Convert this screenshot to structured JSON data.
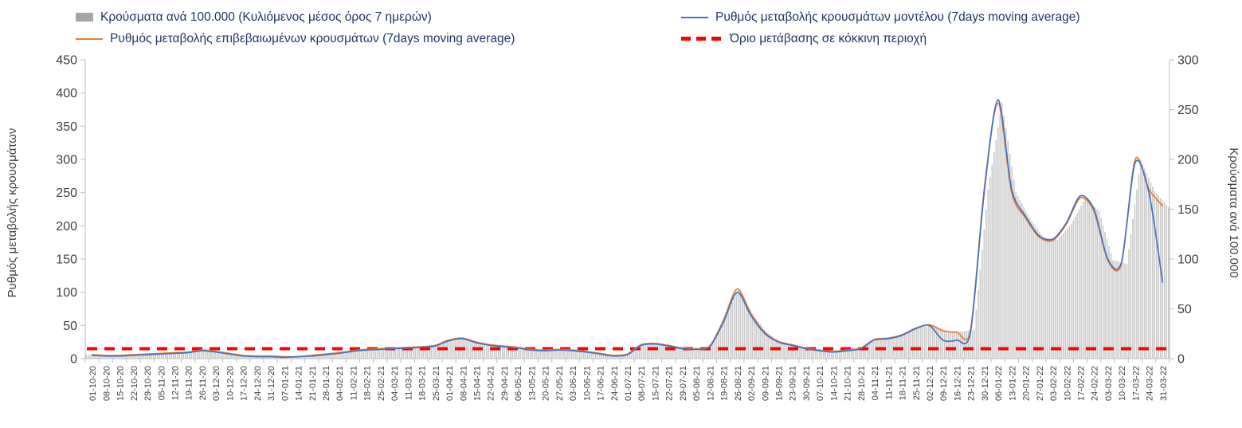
{
  "legend": {
    "text_color": "#1f3864",
    "items": [
      {
        "id": "bars",
        "label": "Κρούσματα ανά 100.000 (Κυλιόμενος μέσος όρος 7 ημερών)",
        "swatch": "gray-bar",
        "color": "#a6a6a6"
      },
      {
        "id": "model",
        "label": "Ρυθμός μεταβολής κρουσμάτων μοντέλου (7days moving average)",
        "swatch": "line",
        "color": "#4472c4"
      },
      {
        "id": "confirmed",
        "label": "Ρυθμός μεταβολής επιβεβαιωμένων κρουσμάτων (7days moving average)",
        "swatch": "line",
        "color": "#ed7d31"
      },
      {
        "id": "threshold",
        "label": "Όριο μετάβασης σε κόκκινη περιοχή",
        "swatch": "dashed-line",
        "color": "#ff0000"
      }
    ]
  },
  "chart_data": {
    "type": "bar",
    "title": "",
    "legend_position": "top",
    "grid": false,
    "left_axis": {
      "label": "Ρυθμός μεταβολής κρουσμάτων",
      "min": 0,
      "max": 450,
      "step": 50
    },
    "right_axis": {
      "label": "Κρούσματα ανά 100.000",
      "min": 0,
      "max": 300,
      "step": 50
    },
    "categories": [
      "01-10-20",
      "08-10-20",
      "15-10-20",
      "22-10-20",
      "29-10-20",
      "05-11-20",
      "12-11-20",
      "19-11-20",
      "26-11-20",
      "03-12-20",
      "10-12-20",
      "17-12-20",
      "24-12-20",
      "31-12-20",
      "07-01-21",
      "14-01-21",
      "21-01-21",
      "28-01-21",
      "04-02-21",
      "11-02-21",
      "18-02-21",
      "25-02-21",
      "04-03-21",
      "11-03-21",
      "18-03-21",
      "25-03-21",
      "01-04-21",
      "08-04-21",
      "15-04-21",
      "22-04-21",
      "29-04-21",
      "06-05-21",
      "13-05-21",
      "20-05-21",
      "27-05-21",
      "03-06-21",
      "10-06-21",
      "17-06-21",
      "24-06-21",
      "01-07-21",
      "08-07-21",
      "15-07-21",
      "22-07-21",
      "29-07-21",
      "05-08-21",
      "12-08-21",
      "19-08-21",
      "26-08-21",
      "02-09-21",
      "09-09-21",
      "16-09-21",
      "23-09-21",
      "30-09-21",
      "07-10-21",
      "14-10-21",
      "21-10-21",
      "28-10-21",
      "04-11-21",
      "11-11-21",
      "18-11-21",
      "25-11-21",
      "02-12-21",
      "09-12-21",
      "16-12-21",
      "23-12-21",
      "30-12-21",
      "06-01-22",
      "13-01-22",
      "20-01-22",
      "27-01-22",
      "03-02-22",
      "10-02-22",
      "17-02-22",
      "24-02-22",
      "03-03-22",
      "10-03-22",
      "17-03-22",
      "24-03-22",
      "31-03-22"
    ],
    "series": [
      {
        "id": "bars",
        "name": "Κρούσματα ανά 100.000 (Κυλιόμενος μέσος όρος 7 ημερών)",
        "type": "bar",
        "axis": "right",
        "color": "#c9c9c9",
        "values": [
          4,
          3,
          3,
          4,
          5,
          5,
          6,
          7,
          9,
          7,
          5,
          3,
          3,
          3,
          2,
          2,
          3,
          5,
          6,
          8,
          9,
          10,
          11,
          11,
          12,
          13,
          19,
          21,
          17,
          14,
          13,
          11,
          9,
          9,
          9,
          9,
          7,
          5,
          3,
          5,
          14,
          15,
          13,
          11,
          10,
          13,
          39,
          70,
          45,
          27,
          17,
          14,
          11,
          9,
          7,
          9,
          11,
          19,
          21,
          24,
          31,
          34,
          28,
          27,
          29,
          170,
          257,
          167,
          141,
          122,
          119,
          135,
          161,
          148,
          99,
          95,
          200,
          168,
          152
        ]
      },
      {
        "id": "model",
        "name": "Ρυθμός μεταβολής κρουσμάτων μοντέλου (7days moving average)",
        "type": "line",
        "axis": "left",
        "color": "#4472c4",
        "values": [
          5,
          4,
          4,
          5,
          6,
          7,
          8,
          9,
          12,
          10,
          7,
          4,
          3,
          3,
          2,
          3,
          4,
          6,
          8,
          11,
          13,
          14,
          15,
          16,
          17,
          19,
          27,
          30,
          24,
          20,
          18,
          16,
          13,
          12,
          13,
          12,
          10,
          7,
          4,
          6,
          20,
          22,
          19,
          15,
          14,
          18,
          55,
          100,
          65,
          38,
          25,
          20,
          15,
          12,
          10,
          12,
          15,
          28,
          30,
          35,
          45,
          50,
          28,
          28,
          40,
          250,
          390,
          255,
          215,
          185,
          180,
          205,
          245,
          225,
          150,
          145,
          295,
          250,
          115
        ]
      },
      {
        "id": "confirmed",
        "name": "Ρυθμός μεταβολής επιβεβαιωμένων κρουσμάτων (7days moving average)",
        "type": "line",
        "axis": "left",
        "color": "#ed7d31",
        "values": [
          6,
          5,
          5,
          6,
          7,
          8,
          9,
          10,
          13,
          11,
          8,
          5,
          4,
          4,
          3,
          3,
          5,
          7,
          9,
          12,
          14,
          15,
          16,
          17,
          18,
          20,
          28,
          31,
          25,
          21,
          19,
          17,
          14,
          13,
          14,
          13,
          11,
          8,
          5,
          7,
          21,
          23,
          20,
          16,
          15,
          19,
          58,
          105,
          68,
          40,
          26,
          21,
          16,
          13,
          11,
          13,
          16,
          29,
          31,
          36,
          46,
          51,
          42,
          40,
          43,
          255,
          385,
          250,
          212,
          183,
          178,
          203,
          242,
          222,
          148,
          143,
          300,
          255,
          230
        ]
      },
      {
        "id": "threshold",
        "name": "Όριο μετάβασης σε κόκκινη περιοχή",
        "type": "threshold",
        "axis": "left",
        "color": "#ff0000",
        "value": 15
      }
    ]
  }
}
